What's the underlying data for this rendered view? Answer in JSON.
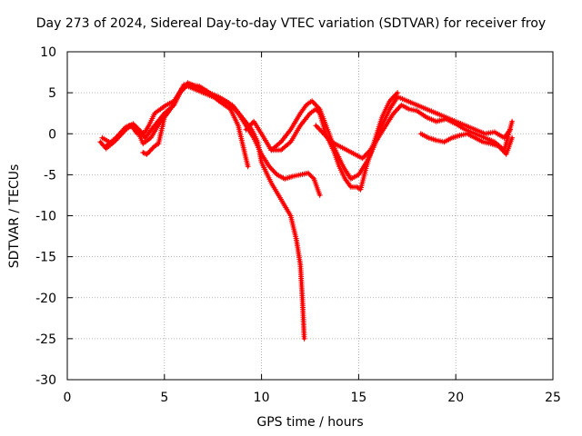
{
  "chart_data": {
    "type": "scatter",
    "title": "Day 273 of 2024, Sidereal Day-to-day VTEC variation (SDTVAR) for receiver froy",
    "xlabel": "GPS time / hours",
    "ylabel": "SDTVAR / TECUs",
    "xlim": [
      0,
      25
    ],
    "ylim": [
      -30,
      10
    ],
    "xticks": [
      "0",
      "5",
      "10",
      "15",
      "20",
      "25"
    ],
    "yticks": [
      "10",
      "5",
      "0",
      "-5",
      "-10",
      "-15",
      "-20",
      "-25",
      "-30"
    ],
    "grid": true,
    "marker": "+",
    "color": "#ff0000",
    "series": [
      {
        "name": "trace-1",
        "x": [
          1.7,
          2.0,
          2.5,
          3.0,
          3.3,
          3.6,
          4.0,
          4.2,
          4.5,
          4.8,
          5.1,
          5.5,
          5.9,
          6.2,
          6.6,
          7.2,
          7.8,
          8.4,
          8.8,
          9.3
        ],
        "y": [
          -1.0,
          -1.8,
          -0.8,
          0.5,
          1.0,
          0.0,
          0.2,
          1.0,
          2.5,
          3.0,
          3.5,
          4.0,
          5.5,
          6.2,
          5.8,
          5.2,
          4.0,
          3.0,
          1.0,
          -4.0
        ]
      },
      {
        "name": "trace-2",
        "x": [
          2.0,
          2.5,
          3.0,
          3.4,
          3.7,
          4.0,
          4.5,
          5.0,
          5.5,
          6.0,
          6.5,
          7.0,
          7.5,
          8.0,
          8.5,
          9.0,
          9.5,
          9.8,
          10.0,
          10.5,
          11.0,
          11.5,
          11.8,
          12.0,
          12.1,
          12.2
        ],
        "y": [
          -1.5,
          -0.5,
          0.8,
          1.2,
          0.5,
          -0.5,
          1.0,
          2.5,
          3.5,
          6.0,
          5.5,
          5.0,
          4.5,
          4.0,
          3.5,
          2.0,
          0.5,
          -1.0,
          -3.5,
          -6.0,
          -8.0,
          -10.0,
          -13.0,
          -16.0,
          -20.0,
          -25.0
        ]
      },
      {
        "name": "trace-3",
        "x": [
          1.8,
          2.3,
          2.8,
          3.2,
          3.6,
          3.9,
          4.3,
          4.8,
          5.3,
          5.8,
          6.2,
          6.8,
          7.3,
          7.8,
          8.3,
          8.8,
          9.2,
          9.6,
          10.0,
          10.4,
          10.8,
          11.2,
          11.6,
          12.0,
          12.4,
          12.7,
          13.0
        ],
        "y": [
          -0.5,
          -1.2,
          0.0,
          1.0,
          0.5,
          -1.2,
          -0.5,
          1.5,
          3.0,
          5.0,
          6.0,
          5.8,
          5.0,
          4.5,
          3.8,
          2.5,
          1.0,
          -0.5,
          -2.5,
          -4.0,
          -5.0,
          -5.5,
          -5.2,
          -5.0,
          -4.8,
          -5.5,
          -7.5
        ]
      },
      {
        "name": "trace-4",
        "x": [
          9.2,
          9.6,
          10.0,
          10.5,
          11.0,
          11.5,
          12.0,
          12.5,
          12.8,
          13.0,
          13.3,
          13.7,
          14.0,
          14.3,
          14.6,
          14.9,
          15.1,
          15.4,
          15.8,
          16.2,
          16.6,
          17.0
        ],
        "y": [
          0.5,
          1.5,
          0.0,
          -2.0,
          -2.0,
          -1.0,
          1.0,
          2.5,
          3.0,
          2.5,
          0.0,
          -2.0,
          -4.0,
          -5.5,
          -6.5,
          -6.5,
          -6.8,
          -4.0,
          -1.0,
          2.0,
          4.0,
          5.0
        ]
      },
      {
        "name": "trace-5",
        "x": [
          10.5,
          11.0,
          11.5,
          12.0,
          12.3,
          12.6,
          13.0,
          13.4,
          13.8,
          14.2,
          14.6,
          15.0,
          15.4,
          15.8,
          16.2,
          16.6,
          17.0,
          17.5,
          18.0,
          18.5,
          19.0,
          19.5,
          20.0,
          20.5,
          21.0,
          21.5,
          22.0,
          22.5,
          22.8
        ],
        "y": [
          -2.0,
          -1.0,
          0.5,
          2.5,
          3.5,
          4.0,
          3.0,
          0.5,
          -2.0,
          -4.0,
          -5.5,
          -5.0,
          -3.5,
          -1.5,
          1.0,
          3.0,
          4.5,
          4.0,
          3.5,
          3.0,
          2.5,
          2.0,
          1.5,
          1.0,
          0.5,
          0.0,
          0.2,
          -0.5,
          0.5
        ]
      },
      {
        "name": "trace-6",
        "x": [
          12.8,
          13.2,
          13.6,
          14.0,
          14.4,
          14.8,
          15.2,
          15.6,
          16.0,
          16.4,
          16.8,
          17.2,
          17.6,
          18.0,
          18.5,
          19.0,
          19.5,
          20.0,
          20.5,
          21.0,
          21.5,
          22.0,
          22.5,
          22.9
        ],
        "y": [
          1.0,
          0.0,
          -1.0,
          -1.5,
          -2.0,
          -2.5,
          -3.0,
          -2.0,
          -0.5,
          1.0,
          2.5,
          3.5,
          3.0,
          2.8,
          2.0,
          1.5,
          1.8,
          1.2,
          0.5,
          0.0,
          -0.5,
          -1.0,
          -2.0,
          1.5
        ]
      },
      {
        "name": "trace-7",
        "x": [
          18.2,
          18.6,
          19.0,
          19.4,
          19.8,
          20.2,
          20.6,
          21.0,
          21.4,
          21.8,
          22.2,
          22.6,
          22.9
        ],
        "y": [
          0.0,
          -0.5,
          -0.8,
          -1.0,
          -0.5,
          -0.2,
          0.0,
          -0.5,
          -1.0,
          -1.2,
          -1.5,
          -2.5,
          -0.5
        ]
      },
      {
        "name": "trace-8",
        "x": [
          3.9,
          4.1,
          4.3,
          4.5,
          4.7,
          5.0,
          5.3
        ],
        "y": [
          -2.3,
          -2.5,
          -2.0,
          -1.5,
          -1.2,
          2.0,
          3.0
        ]
      }
    ]
  }
}
